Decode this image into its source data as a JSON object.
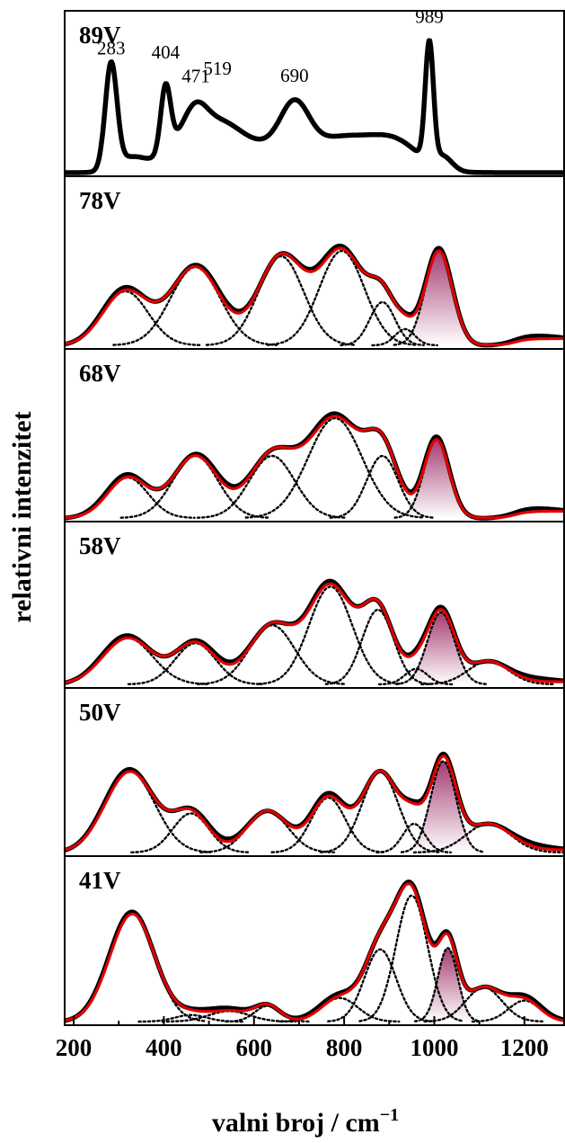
{
  "chart_data": {
    "type": "line",
    "ylabel": "relativni intenzitet",
    "xlabel": "valni broj / cm",
    "xlabel_superscript": "−1",
    "xlim": [
      180,
      1290
    ],
    "xticks": [
      200,
      400,
      600,
      800,
      1000,
      1200
    ],
    "tick_labels": [
      "200",
      "400",
      "600",
      "800",
      "1000",
      "1200"
    ],
    "colors": {
      "experimental": "#000000",
      "fit": "#e00000",
      "component": "#000000",
      "shaded": "#a0306a"
    },
    "panels": [
      {
        "label": "89V",
        "peak_labels": [
          "283",
          "404",
          "471",
          "519",
          "690",
          "989"
        ],
        "peak_positions": [
          283,
          404,
          471,
          519,
          690,
          989
        ],
        "baseline_start": 200,
        "components": [
          {
            "center": 283,
            "height": 0.82,
            "width": 13
          },
          {
            "center": 330,
            "height": 0.12,
            "width": 35
          },
          {
            "center": 404,
            "height": 0.52,
            "width": 11
          },
          {
            "center": 440,
            "height": 0.22,
            "width": 40
          },
          {
            "center": 471,
            "height": 0.2,
            "width": 25
          },
          {
            "center": 519,
            "height": 0.3,
            "width": 45
          },
          {
            "center": 600,
            "height": 0.18,
            "width": 60
          },
          {
            "center": 690,
            "height": 0.38,
            "width": 32
          },
          {
            "center": 800,
            "height": 0.28,
            "width": 90
          },
          {
            "center": 920,
            "height": 0.15,
            "width": 50
          },
          {
            "center": 989,
            "height": 0.92,
            "width": 9
          },
          {
            "center": 1020,
            "height": 0.1,
            "width": 20
          }
        ]
      },
      {
        "label": "78V",
        "shaded_center": 1010,
        "tail": 0.05,
        "components": [
          {
            "center": 315,
            "height": 0.4,
            "width": 50
          },
          {
            "center": 470,
            "height": 0.58,
            "width": 55
          },
          {
            "center": 660,
            "height": 0.66,
            "width": 50
          },
          {
            "center": 795,
            "height": 0.7,
            "width": 50
          },
          {
            "center": 885,
            "height": 0.32,
            "width": 28
          },
          {
            "center": 935,
            "height": 0.12,
            "width": 22
          },
          {
            "center": 1010,
            "height": 0.7,
            "width": 30
          }
        ]
      },
      {
        "label": "68V",
        "shaded_center": 1005,
        "tail": 0.05,
        "components": [
          {
            "center": 320,
            "height": 0.3,
            "width": 45
          },
          {
            "center": 470,
            "height": 0.46,
            "width": 50
          },
          {
            "center": 640,
            "height": 0.46,
            "width": 50
          },
          {
            "center": 780,
            "height": 0.74,
            "width": 60
          },
          {
            "center": 885,
            "height": 0.46,
            "width": 35
          },
          {
            "center": 1005,
            "height": 0.58,
            "width": 28
          }
        ]
      },
      {
        "label": "58V",
        "shaded_center": 1015,
        "tail": 0.02,
        "components": [
          {
            "center": 320,
            "height": 0.36,
            "width": 55
          },
          {
            "center": 470,
            "height": 0.32,
            "width": 45
          },
          {
            "center": 640,
            "height": 0.46,
            "width": 50
          },
          {
            "center": 770,
            "height": 0.76,
            "width": 48
          },
          {
            "center": 875,
            "height": 0.58,
            "width": 35
          },
          {
            "center": 960,
            "height": 0.12,
            "width": 25
          },
          {
            "center": 1015,
            "height": 0.56,
            "width": 30
          },
          {
            "center": 1120,
            "height": 0.18,
            "width": 45
          }
        ]
      },
      {
        "label": "50V",
        "shaded_center": 1020,
        "tail": 0.02,
        "components": [
          {
            "center": 325,
            "height": 0.62,
            "width": 55
          },
          {
            "center": 460,
            "height": 0.3,
            "width": 40
          },
          {
            "center": 630,
            "height": 0.32,
            "width": 45
          },
          {
            "center": 765,
            "height": 0.42,
            "width": 38
          },
          {
            "center": 880,
            "height": 0.62,
            "width": 40
          },
          {
            "center": 955,
            "height": 0.22,
            "width": 25
          },
          {
            "center": 1020,
            "height": 0.7,
            "width": 28
          },
          {
            "center": 1120,
            "height": 0.22,
            "width": 50
          }
        ]
      },
      {
        "label": "41V",
        "shaded_center": 1030,
        "tail": 0.0,
        "components": [
          {
            "center": 330,
            "height": 0.82,
            "width": 50
          },
          {
            "center": 460,
            "height": 0.05,
            "width": 35
          },
          {
            "center": 545,
            "height": 0.08,
            "width": 45
          },
          {
            "center": 630,
            "height": 0.12,
            "width": 28
          },
          {
            "center": 790,
            "height": 0.18,
            "width": 40
          },
          {
            "center": 880,
            "height": 0.55,
            "width": 35
          },
          {
            "center": 950,
            "height": 0.96,
            "width": 35
          },
          {
            "center": 1030,
            "height": 0.56,
            "width": 22
          },
          {
            "center": 1110,
            "height": 0.26,
            "width": 40
          },
          {
            "center": 1200,
            "height": 0.16,
            "width": 35
          }
        ]
      }
    ]
  }
}
